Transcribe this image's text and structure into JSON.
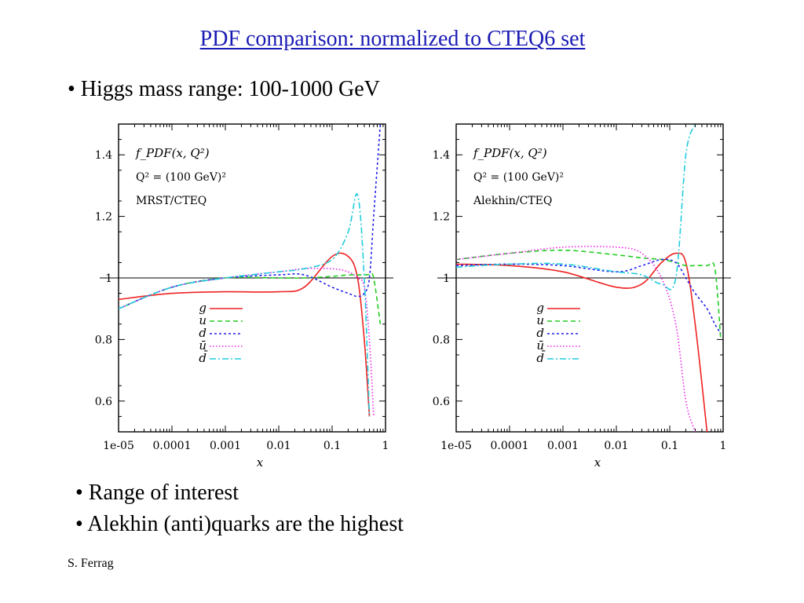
{
  "slide": {
    "title": "PDF comparison: normalized to CTEQ6 set ",
    "bullets_top": [
      "• Higgs mass range: 100-1000 GeV"
    ],
    "bullets_bottom": [
      "• Range of interest",
      "• Alekhin (anti)quarks are the highest"
    ],
    "author": "S. Ferrag"
  },
  "colors": {
    "title": "#1a1ab4",
    "g": "#ee2222",
    "u": "#22cc22",
    "d": "#2222ee",
    "ubar": "#ee22ee",
    "dbar": "#22ccdd"
  },
  "chart_data": [
    {
      "type": "line",
      "x_scale": "log",
      "xlim": [
        1e-05,
        1
      ],
      "ylim": [
        0.5,
        1.5
      ],
      "x_ticks": [
        "1e-05",
        "0.0001",
        "0.001",
        "0.01",
        "0.1",
        "1"
      ],
      "y_ticks": [
        "0.6",
        "0.8",
        "1",
        "1.2",
        "1.4"
      ],
      "xlabel": "x",
      "annotation": [
        "f_PDF(x, Q²)",
        "Q² = (100 GeV)²",
        "MRST/CTEQ"
      ],
      "legend_position": "center",
      "x": [
        1e-05,
        0.0001,
        0.001,
        0.01,
        0.03,
        0.1,
        0.2,
        0.3,
        0.4,
        0.5,
        0.6,
        0.8
      ],
      "series": [
        {
          "name": "g",
          "values": [
            0.93,
            0.95,
            0.955,
            0.955,
            0.97,
            1.07,
            1.07,
            1.0,
            0.8,
            0.55,
            null,
            null
          ]
        },
        {
          "name": "u",
          "values": [
            0.9,
            0.97,
            1.0,
            1.0,
            1.0,
            1.005,
            1.01,
            1.01,
            1.01,
            1.01,
            1.0,
            0.85
          ]
        },
        {
          "name": "d",
          "values": [
            0.9,
            0.97,
            1.0,
            1.01,
            1.01,
            0.97,
            0.95,
            0.94,
            0.95,
            1.0,
            1.2,
            1.5
          ]
        },
        {
          "name": "ū",
          "values": [
            0.9,
            0.97,
            1.0,
            1.02,
            1.03,
            1.03,
            1.02,
            1.0,
            0.97,
            0.8,
            0.55,
            null
          ]
        },
        {
          "name": "d̄",
          "values": [
            0.9,
            0.97,
            1.0,
            1.02,
            1.03,
            1.06,
            1.15,
            1.27,
            1.0,
            0.55,
            null,
            null
          ]
        }
      ]
    },
    {
      "type": "line",
      "x_scale": "log",
      "xlim": [
        1e-05,
        1
      ],
      "ylim": [
        0.5,
        1.5
      ],
      "x_ticks": [
        "1e-05",
        "0.0001",
        "0.001",
        "0.01",
        "0.1",
        "1"
      ],
      "y_ticks": [
        "0.6",
        "0.8",
        "1",
        "1.2",
        "1.4"
      ],
      "xlabel": "x",
      "annotation": [
        "f_PDF(x, Q²)",
        "Q² = (100 GeV)²",
        "Alekhin/CTEQ"
      ],
      "legend_position": "center",
      "x": [
        1e-05,
        0.0001,
        0.001,
        0.01,
        0.03,
        0.07,
        0.13,
        0.2,
        0.3,
        0.5,
        0.7,
        0.9
      ],
      "series": [
        {
          "name": "g",
          "values": [
            1.045,
            1.04,
            1.02,
            0.97,
            0.98,
            1.05,
            1.08,
            1.05,
            0.85,
            0.5,
            null,
            null
          ]
        },
        {
          "name": "u",
          "values": [
            1.06,
            1.08,
            1.09,
            1.075,
            1.065,
            1.06,
            1.05,
            1.04,
            1.04,
            1.04,
            1.03,
            0.8
          ]
        },
        {
          "name": "d",
          "values": [
            1.04,
            1.045,
            1.04,
            1.02,
            1.04,
            1.06,
            1.05,
            1.0,
            0.95,
            0.9,
            0.85,
            0.82
          ]
        },
        {
          "name": "ū",
          "values": [
            1.06,
            1.08,
            1.1,
            1.1,
            1.08,
            1.0,
            0.85,
            0.6,
            0.5,
            null,
            null,
            null
          ]
        },
        {
          "name": "d̄",
          "values": [
            1.035,
            1.045,
            1.045,
            1.02,
            1.01,
            0.98,
            1.0,
            1.4,
            1.5,
            null,
            null,
            null
          ]
        }
      ]
    }
  ]
}
